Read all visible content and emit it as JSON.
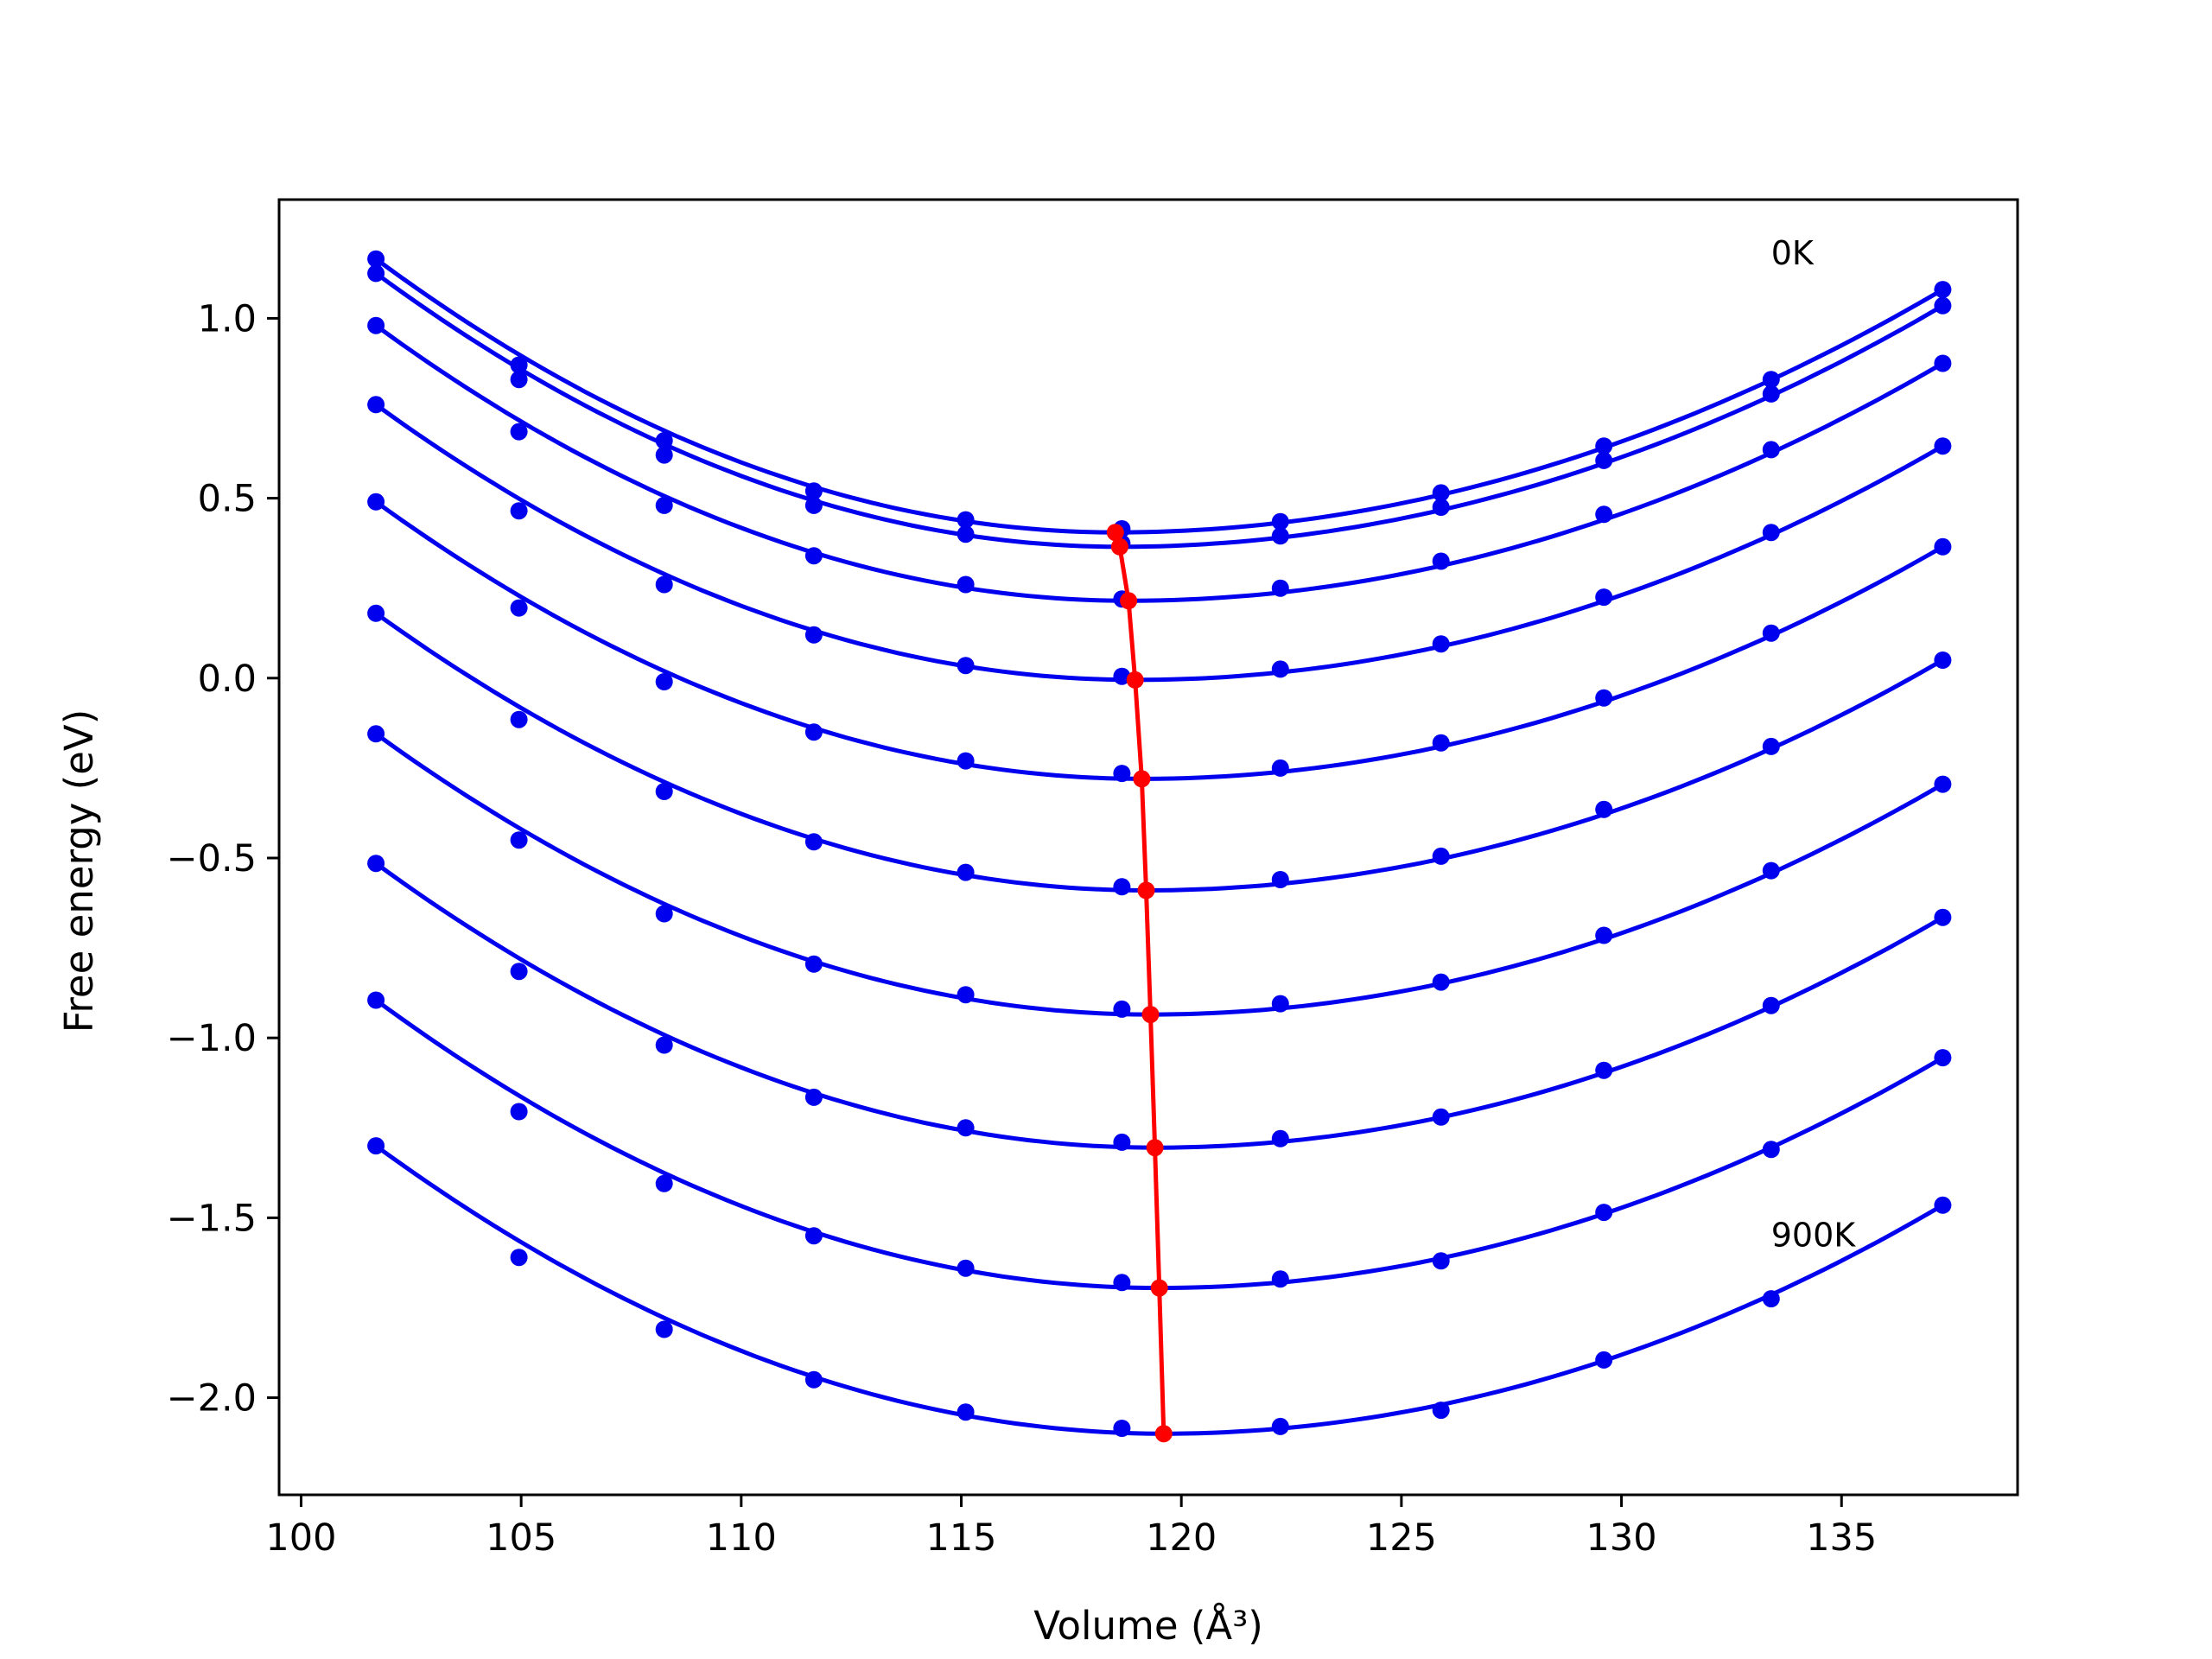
{
  "chart_data": {
    "type": "line",
    "xlabel": "Volume (Å³)",
    "ylabel": "Free energy (eV)",
    "xlim": [
      99.5,
      139
    ],
    "ylim": [
      -2.27,
      1.33
    ],
    "xticks": [
      100,
      105,
      110,
      115,
      120,
      125,
      130,
      135
    ],
    "yticks": [
      1.0,
      0.5,
      0.0,
      -0.5,
      -1.0,
      -1.5,
      -2.0
    ],
    "ytick_labels": [
      "1.0",
      "0.5",
      "0.0",
      "−0.5",
      "−1.0",
      "−1.5",
      "−2.0"
    ],
    "grid": false,
    "colors": {
      "curves": "#0000ee",
      "minima": "#ff0000",
      "axes": "#000000"
    },
    "annotations": [
      {
        "text": "0K",
        "x": 133.4,
        "y": 1.15
      },
      {
        "text": "900K",
        "x": 133.4,
        "y": -1.58
      }
    ],
    "volumes": [
      101.7,
      104.95,
      108.25,
      111.65,
      115.1,
      118.65,
      122.25,
      125.9,
      129.6,
      133.4,
      137.3
    ],
    "series": [
      {
        "points": [
          1.165,
          0.87,
          0.66,
          0.52,
          0.44,
          0.415,
          0.435,
          0.515,
          0.645,
          0.83,
          1.08
        ],
        "fit_min_volume": 118.5,
        "fit_min_energy": 0.405
      },
      {
        "points": [
          1.125,
          0.83,
          0.62,
          0.48,
          0.4,
          0.375,
          0.395,
          0.475,
          0.605,
          0.79,
          1.035
        ],
        "fit_min_volume": 118.6,
        "fit_min_energy": 0.365
      },
      {
        "points": [
          0.98,
          0.685,
          0.48,
          0.34,
          0.26,
          0.22,
          0.25,
          0.325,
          0.455,
          0.635,
          0.875
        ],
        "fit_min_volume": 118.8,
        "fit_min_energy": 0.215
      },
      {
        "points": [
          0.76,
          0.465,
          0.26,
          0.12,
          0.035,
          0.005,
          0.025,
          0.095,
          0.225,
          0.405,
          0.645
        ],
        "fit_min_volume": 118.95,
        "fit_min_energy": -0.005
      },
      {
        "points": [
          0.49,
          0.195,
          -0.01,
          -0.15,
          -0.23,
          -0.265,
          -0.25,
          -0.18,
          -0.055,
          0.125,
          0.365
        ],
        "fit_min_volume": 119.1,
        "fit_min_energy": -0.28
      },
      {
        "points": [
          0.18,
          -0.115,
          -0.315,
          -0.455,
          -0.54,
          -0.58,
          -0.56,
          -0.495,
          -0.365,
          -0.19,
          0.05
        ],
        "fit_min_volume": 119.2,
        "fit_min_energy": -0.59
      },
      {
        "points": [
          -0.155,
          -0.45,
          -0.655,
          -0.795,
          -0.88,
          -0.92,
          -0.905,
          -0.845,
          -0.715,
          -0.535,
          -0.295
        ],
        "fit_min_volume": 119.3,
        "fit_min_energy": -0.935
      },
      {
        "points": [
          -0.515,
          -0.815,
          -1.02,
          -1.165,
          -1.25,
          -1.29,
          -1.28,
          -1.22,
          -1.09,
          -0.91,
          -0.665
        ],
        "fit_min_volume": 119.4,
        "fit_min_energy": -1.305
      },
      {
        "points": [
          -0.895,
          -1.205,
          -1.405,
          -1.55,
          -1.64,
          -1.68,
          -1.67,
          -1.62,
          -1.485,
          -1.31,
          -1.055
        ],
        "fit_min_volume": 119.5,
        "fit_min_energy": -1.695
      },
      {
        "points": [
          -1.3,
          -1.61,
          -1.81,
          -1.95,
          -2.04,
          -2.085,
          -2.08,
          -2.035,
          -1.895,
          -1.725,
          -1.465
        ],
        "fit_min_volume": 119.6,
        "fit_min_energy": -2.1
      }
    ]
  }
}
